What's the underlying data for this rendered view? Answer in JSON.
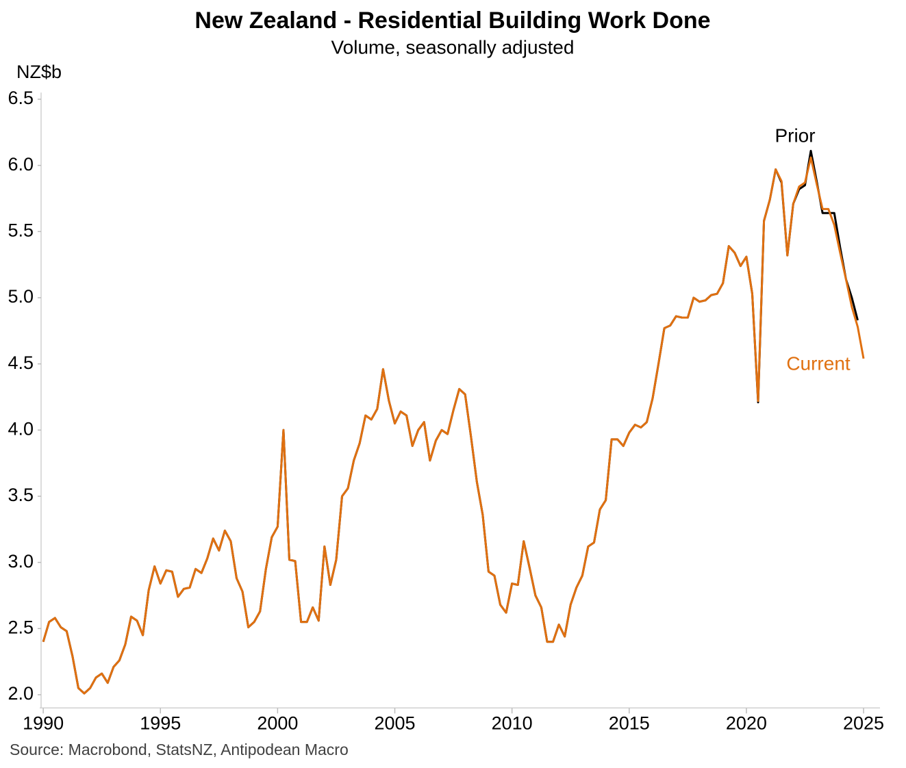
{
  "chart_data": {
    "type": "line",
    "title": "New Zealand - Residential Building Work Done",
    "subtitle": "Volume, seasonally adjusted",
    "y_label": "NZ$b",
    "source": "Source: Macrobond, StatsNZ, Antipodean Macro",
    "x": [
      1990,
      1990.25,
      1990.5,
      1990.75,
      1991,
      1991.25,
      1991.5,
      1991.75,
      1992,
      1992.25,
      1992.5,
      1992.75,
      1993,
      1993.25,
      1993.5,
      1993.75,
      1994,
      1994.25,
      1994.5,
      1994.75,
      1995,
      1995.25,
      1995.5,
      1995.75,
      1996,
      1996.25,
      1996.5,
      1996.75,
      1997,
      1997.25,
      1997.5,
      1997.75,
      1998,
      1998.25,
      1998.5,
      1998.75,
      1999,
      1999.25,
      1999.5,
      1999.75,
      2000,
      2000.25,
      2000.5,
      2000.75,
      2001,
      2001.25,
      2001.5,
      2001.75,
      2002,
      2002.25,
      2002.5,
      2002.75,
      2003,
      2003.25,
      2003.5,
      2003.75,
      2004,
      2004.25,
      2004.5,
      2004.75,
      2005,
      2005.25,
      2005.5,
      2005.75,
      2006,
      2006.25,
      2006.5,
      2006.75,
      2007,
      2007.25,
      2007.5,
      2007.75,
      2008,
      2008.25,
      2008.5,
      2008.75,
      2009,
      2009.25,
      2009.5,
      2009.75,
      2010,
      2010.25,
      2010.5,
      2010.75,
      2011,
      2011.25,
      2011.5,
      2011.75,
      2012,
      2012.25,
      2012.5,
      2012.75,
      2013,
      2013.25,
      2013.5,
      2013.75,
      2014,
      2014.25,
      2014.5,
      2014.75,
      2015,
      2015.25,
      2015.5,
      2015.75,
      2016,
      2016.25,
      2016.5,
      2016.75,
      2017,
      2017.25,
      2017.5,
      2017.75,
      2018,
      2018.25,
      2018.5,
      2018.75,
      2019,
      2019.25,
      2019.5,
      2019.75,
      2020,
      2020.25,
      2020.5,
      2020.75,
      2021,
      2021.25,
      2021.5,
      2021.75,
      2022,
      2022.25,
      2022.5,
      2022.75,
      2023,
      2023.25,
      2023.5,
      2023.75,
      2024,
      2024.25,
      2024.5,
      2024.75,
      2025
    ],
    "series": [
      {
        "name": "Prior",
        "color": "#000000",
        "values": [
          2.4,
          2.55,
          2.58,
          2.51,
          2.48,
          2.29,
          2.05,
          2.01,
          2.05,
          2.13,
          2.16,
          2.09,
          2.21,
          2.26,
          2.38,
          2.59,
          2.56,
          2.45,
          2.79,
          2.97,
          2.84,
          2.94,
          2.93,
          2.74,
          2.8,
          2.81,
          2.95,
          2.92,
          3.03,
          3.18,
          3.09,
          3.24,
          3.16,
          2.88,
          2.78,
          2.51,
          2.55,
          2.63,
          2.95,
          3.19,
          3.27,
          4.0,
          3.02,
          3.01,
          2.55,
          2.55,
          2.66,
          2.56,
          3.12,
          2.83,
          3.02,
          3.5,
          3.56,
          3.77,
          3.9,
          4.11,
          4.08,
          4.16,
          4.46,
          4.22,
          4.05,
          4.14,
          4.11,
          3.88,
          4.0,
          4.06,
          3.77,
          3.92,
          4.0,
          3.97,
          4.15,
          4.31,
          4.27,
          3.95,
          3.61,
          3.36,
          2.93,
          2.9,
          2.68,
          2.62,
          2.84,
          2.83,
          3.16,
          2.96,
          2.75,
          2.66,
          2.4,
          2.4,
          2.53,
          2.44,
          2.68,
          2.81,
          2.9,
          3.12,
          3.15,
          3.4,
          3.47,
          3.93,
          3.93,
          3.88,
          3.98,
          4.04,
          4.02,
          4.06,
          4.24,
          4.5,
          4.77,
          4.79,
          4.86,
          4.85,
          4.85,
          5.0,
          4.97,
          4.98,
          5.02,
          5.03,
          5.11,
          5.39,
          5.34,
          5.24,
          5.31,
          5.03,
          4.21,
          5.58,
          5.74,
          5.97,
          5.87,
          5.32,
          5.71,
          5.82,
          5.85,
          6.11,
          5.88,
          5.64,
          5.64,
          5.64,
          5.38,
          5.14,
          5.0,
          4.83,
          null
        ]
      },
      {
        "name": "Current",
        "color": "#e07010",
        "values": [
          2.4,
          2.55,
          2.58,
          2.51,
          2.48,
          2.29,
          2.05,
          2.01,
          2.05,
          2.13,
          2.16,
          2.09,
          2.21,
          2.26,
          2.38,
          2.59,
          2.56,
          2.45,
          2.79,
          2.97,
          2.84,
          2.94,
          2.93,
          2.74,
          2.8,
          2.81,
          2.95,
          2.92,
          3.03,
          3.18,
          3.09,
          3.24,
          3.16,
          2.88,
          2.78,
          2.51,
          2.55,
          2.63,
          2.95,
          3.19,
          3.27,
          4.0,
          3.02,
          3.01,
          2.55,
          2.55,
          2.66,
          2.56,
          3.12,
          2.83,
          3.02,
          3.5,
          3.56,
          3.77,
          3.9,
          4.11,
          4.08,
          4.16,
          4.46,
          4.22,
          4.05,
          4.14,
          4.11,
          3.88,
          4.0,
          4.06,
          3.77,
          3.92,
          4.0,
          3.97,
          4.15,
          4.31,
          4.27,
          3.95,
          3.61,
          3.36,
          2.93,
          2.9,
          2.68,
          2.62,
          2.84,
          2.83,
          3.16,
          2.96,
          2.75,
          2.66,
          2.4,
          2.4,
          2.53,
          2.44,
          2.68,
          2.81,
          2.9,
          3.12,
          3.15,
          3.4,
          3.47,
          3.93,
          3.93,
          3.88,
          3.98,
          4.04,
          4.02,
          4.06,
          4.24,
          4.5,
          4.77,
          4.79,
          4.86,
          4.85,
          4.85,
          5.0,
          4.97,
          4.98,
          5.02,
          5.03,
          5.11,
          5.39,
          5.34,
          5.24,
          5.31,
          5.03,
          4.22,
          5.58,
          5.74,
          5.97,
          5.88,
          5.32,
          5.71,
          5.84,
          5.87,
          6.06,
          5.86,
          5.67,
          5.67,
          5.55,
          5.34,
          5.14,
          4.93,
          4.78,
          4.54
        ]
      }
    ],
    "xlim": [
      1989.85,
      2025.7
    ],
    "xticks": [
      1990,
      1995,
      2000,
      2005,
      2010,
      2015,
      2020,
      2025
    ],
    "ylim": [
      1.9,
      6.55
    ],
    "yticks": [
      {
        "value": 2,
        "label": "2.0"
      },
      2.5,
      {
        "value": 3,
        "label": "3.0"
      },
      3.5,
      {
        "value": 4,
        "label": "4.0"
      },
      4.5,
      {
        "value": 5,
        "label": "5.0"
      },
      5.5,
      {
        "value": 6,
        "label": "6.0"
      },
      6.5
    ],
    "grid": false
  }
}
